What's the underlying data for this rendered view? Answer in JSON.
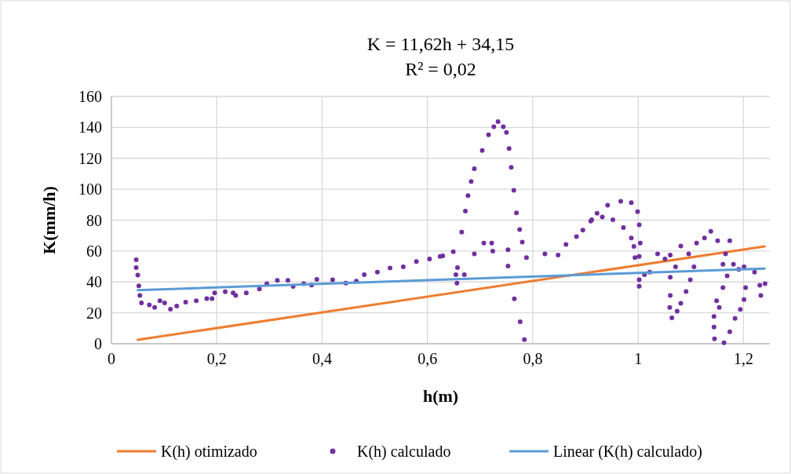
{
  "chart_data": {
    "type": "scatter",
    "title": "K = 11,62h + 34,15",
    "subtitle": "R² = 0,02",
    "xlabel": "h(m)",
    "ylabel": "K(mm/h)",
    "xlim": [
      0,
      1.25
    ],
    "xticks": [
      0,
      {
        "value": 0.2,
        "label": "0,2"
      },
      {
        "value": 0.4,
        "label": "0,4"
      },
      {
        "value": 0.6,
        "label": "0,6"
      },
      {
        "value": 0.8,
        "label": "0,8"
      },
      1,
      {
        "value": 1.2,
        "label": "1,2"
      }
    ],
    "ylim": [
      0,
      160
    ],
    "yticks": [
      0,
      20,
      40,
      60,
      80,
      100,
      120,
      140,
      160
    ],
    "grid": true,
    "legend": "bottom",
    "series": [
      {
        "name": "K(h) otimizado",
        "type": "line",
        "marker": "none",
        "color": "#ed7d31",
        "x": [
          0.05,
          1.24
        ],
        "values": [
          2.5,
          63
        ]
      },
      {
        "name": "K(h) calculado",
        "marker": "circle",
        "color": "#7030a0",
        "x": [
          0.047,
          0.047,
          0.05,
          0.052,
          0.054,
          0.057,
          0.072,
          0.082,
          0.092,
          0.101,
          0.112,
          0.124,
          0.141,
          0.161,
          0.181,
          0.191,
          0.196,
          0.216,
          0.231,
          0.236,
          0.256,
          0.281,
          0.295,
          0.315,
          0.335,
          0.345,
          0.365,
          0.38,
          0.39,
          0.42,
          0.445,
          0.465,
          0.48,
          0.505,
          0.529,
          0.554,
          0.579,
          0.604,
          0.624,
          0.629,
          0.649,
          0.654,
          0.656,
          0.657,
          0.67,
          0.665,
          0.689,
          0.707,
          0.722,
          0.724,
          0.753,
          0.788,
          0.823,
          0.848,
          0.863,
          0.883,
          0.895,
          0.91,
          0.922,
          0.942,
          0.967,
          0.987,
          0.999,
          1.002,
          1.004,
          0.994,
          1.002,
          1.002,
          1.002,
          0.912,
          0.932,
          0.952,
          0.972,
          0.987,
          0.992,
          0.672,
          0.677,
          0.683,
          0.689,
          0.704,
          0.716,
          0.726,
          0.734,
          0.744,
          0.75,
          0.755,
          0.759,
          0.764,
          0.769,
          0.775,
          0.78,
          0.753,
          0.765,
          0.776,
          0.784,
          1.012,
          1.022,
          1.037,
          1.051,
          1.061,
          1.071,
          1.081,
          1.096,
          1.111,
          1.126,
          1.138,
          1.151,
          1.166,
          1.181,
          1.201,
          1.221,
          1.231,
          1.233,
          1.241,
          1.061,
          1.061,
          1.06,
          1.064,
          1.074,
          1.081,
          1.091,
          1.099,
          1.106,
          1.144,
          1.144,
          1.145,
          1.163,
          1.174,
          1.184,
          1.194,
          1.201,
          1.204,
          1.191,
          1.149,
          1.154,
          1.161,
          1.169,
          1.161,
          1.174
        ],
        "values": [
          54.4,
          49.3,
          44.4,
          37.4,
          31.2,
          26.4,
          25.2,
          23.5,
          27.8,
          26.4,
          22.4,
          24.4,
          26.9,
          27.8,
          29.2,
          29.2,
          32.9,
          33.7,
          32.9,
          31.2,
          32.9,
          35.4,
          38.8,
          41,
          41,
          37.1,
          38.8,
          38,
          41.7,
          41.4,
          39.3,
          40.5,
          44.7,
          46.4,
          49,
          49.8,
          53.2,
          54.9,
          56.5,
          56.9,
          59.6,
          44.7,
          39.3,
          49.3,
          44.7,
          72.2,
          58.2,
          65.1,
          65.1,
          59.9,
          60.8,
          55.7,
          58.2,
          57.4,
          64.2,
          69.3,
          73.5,
          79.4,
          84.5,
          89.6,
          92.2,
          91.3,
          85.4,
          76.9,
          65.1,
          55.7,
          41.4,
          37.2,
          56.5,
          80.3,
          82,
          80.3,
          75.2,
          68.4,
          63,
          85.9,
          95.9,
          105,
          113.3,
          125.1,
          135.3,
          140.4,
          143.8,
          140.4,
          136.8,
          126.4,
          114.2,
          99.3,
          84.7,
          73.9,
          65.8,
          50.3,
          29.1,
          14.2,
          2.7,
          44.7,
          46.4,
          58.2,
          54.8,
          57.4,
          49.8,
          63.3,
          58.2,
          65.1,
          68.4,
          72.7,
          66.7,
          58.2,
          51.4,
          49.8,
          46.4,
          37.9,
          31.2,
          38.8,
          43,
          31.2,
          23.5,
          16.8,
          21.1,
          26.1,
          33.8,
          41.4,
          49.8,
          17.6,
          10.8,
          3.2,
          0.6,
          7.8,
          16.4,
          22.2,
          28.6,
          36.3,
          48.1,
          27.8,
          23.5,
          36.3,
          43.9,
          51.4,
          66.7
        ]
      },
      {
        "name": "Linear (K(h) calculado)",
        "type": "line",
        "marker": "none",
        "color": "#5b9bd5",
        "x": [
          0.05,
          1.24
        ],
        "values": [
          34.7,
          48.6
        ]
      }
    ]
  }
}
